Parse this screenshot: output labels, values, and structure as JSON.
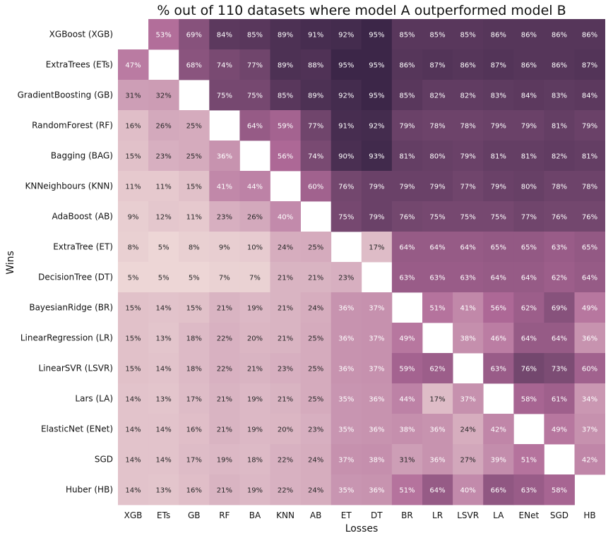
{
  "chart_data": {
    "type": "heatmap",
    "title": "% out of 110 datasets where model A outperformed model B",
    "xlabel": "Losses",
    "ylabel": "Wins",
    "row_labels": [
      "XGBoost (XGB)",
      "ExtraTrees (ETs)",
      "GradientBoosting (GB)",
      "RandomForest (RF)",
      "Bagging (BAG)",
      "KNNeighbours (KNN)",
      "AdaBoost (AB)",
      "ExtraTree (ET)",
      "DecisionTree (DT)",
      "BayesianRidge (BR)",
      "LinearRegression (LR)",
      "LinearSVR (LSVR)",
      "Lars (LA)",
      "ElasticNet (ENet)",
      "SGD",
      "Huber (HB)"
    ],
    "col_labels": [
      "XGB",
      "ETs",
      "GB",
      "RF",
      "BA",
      "KNN",
      "AB",
      "ET",
      "DT",
      "BR",
      "LR",
      "LSVR",
      "LA",
      "ENet",
      "SGD",
      "HB"
    ],
    "value_suffix": "%",
    "values": [
      [
        null,
        53,
        69,
        84,
        85,
        89,
        91,
        92,
        95,
        85,
        85,
        85,
        86,
        86,
        86,
        86
      ],
      [
        47,
        null,
        68,
        74,
        77,
        89,
        88,
        95,
        95,
        86,
        87,
        86,
        87,
        86,
        86,
        87
      ],
      [
        31,
        32,
        null,
        75,
        75,
        85,
        89,
        92,
        95,
        85,
        82,
        82,
        83,
        84,
        83,
        84
      ],
      [
        16,
        26,
        25,
        null,
        64,
        59,
        77,
        91,
        92,
        79,
        78,
        78,
        79,
        79,
        81,
        79
      ],
      [
        15,
        23,
        25,
        36,
        null,
        56,
        74,
        90,
        93,
        81,
        80,
        79,
        81,
        81,
        82,
        81
      ],
      [
        11,
        11,
        15,
        41,
        44,
        null,
        60,
        76,
        79,
        79,
        79,
        77,
        79,
        80,
        78,
        78
      ],
      [
        9,
        12,
        11,
        23,
        26,
        40,
        null,
        75,
        79,
        76,
        75,
        75,
        75,
        77,
        76,
        76
      ],
      [
        8,
        5,
        8,
        9,
        10,
        24,
        25,
        null,
        17,
        64,
        64,
        64,
        65,
        65,
        63,
        65
      ],
      [
        5,
        5,
        5,
        7,
        7,
        21,
        21,
        23,
        null,
        63,
        63,
        63,
        64,
        64,
        62,
        64
      ],
      [
        15,
        14,
        15,
        21,
        19,
        21,
        24,
        36,
        37,
        null,
        51,
        41,
        56,
        62,
        69,
        49
      ],
      [
        15,
        13,
        18,
        22,
        20,
        21,
        25,
        36,
        37,
        49,
        null,
        38,
        46,
        64,
        64,
        36
      ],
      [
        15,
        14,
        18,
        22,
        21,
        23,
        25,
        36,
        37,
        59,
        62,
        null,
        63,
        76,
        73,
        60
      ],
      [
        14,
        13,
        17,
        21,
        19,
        21,
        25,
        35,
        36,
        44,
        17,
        37,
        null,
        58,
        61,
        34
      ],
      [
        14,
        14,
        16,
        21,
        19,
        20,
        23,
        35,
        36,
        38,
        36,
        24,
        42,
        null,
        49,
        37
      ],
      [
        14,
        14,
        17,
        19,
        18,
        22,
        24,
        37,
        38,
        31,
        36,
        27,
        39,
        51,
        null,
        42
      ],
      [
        14,
        13,
        16,
        21,
        19,
        22,
        24,
        35,
        36,
        51,
        64,
        40,
        66,
        63,
        58,
        null
      ]
    ],
    "color_scale": {
      "low": "#f3e1dc",
      "high": "#2d1e3e",
      "range": [
        0,
        100
      ]
    },
    "grid": false,
    "legend": "none"
  }
}
